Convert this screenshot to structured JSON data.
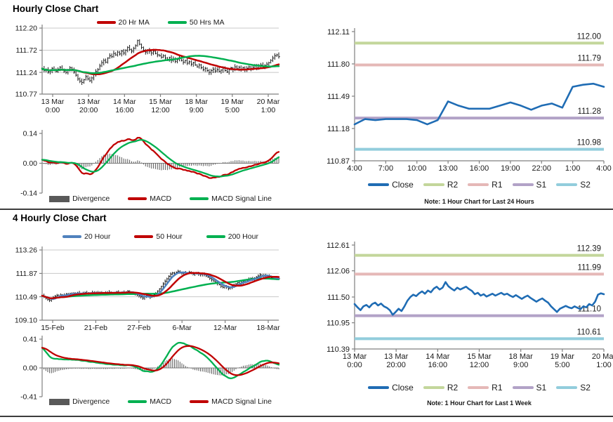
{
  "colors": {
    "ma_red": "#C00000",
    "ma_green": "#00B050",
    "ma_blue": "#4F81BD",
    "close": "#1F6CB4",
    "r2": "#C3D69B",
    "r1": "#E5B8B7",
    "s1": "#B2A2C7",
    "s2": "#92CDDC",
    "divergence": "#595959",
    "axis": "#808080",
    "grid": "#C8C8C8",
    "price_bar": "#000000"
  },
  "hourly": {
    "title": "Hourly Close Chart",
    "price_legend": [
      {
        "label": "20 Hr MA",
        "color": "#C00000",
        "type": "line"
      },
      {
        "label": "50 Hrs MA",
        "color": "#00B050",
        "type": "line"
      }
    ],
    "macd_legend": [
      {
        "label": "Divergence",
        "color": "#595959",
        "type": "bar"
      },
      {
        "label": "MACD",
        "color": "#C00000",
        "type": "line"
      },
      {
        "label": "MACD Signal Line",
        "color": "#00B050",
        "type": "line"
      }
    ]
  },
  "four_hourly": {
    "title": "4 Hourly Close Chart",
    "price_legend": [
      {
        "label": "20 Hour",
        "color": "#4F81BD",
        "type": "line"
      },
      {
        "label": "50 Hour",
        "color": "#C00000",
        "type": "line"
      },
      {
        "label": "200 Hour",
        "color": "#00B050",
        "type": "line"
      }
    ],
    "macd_legend": [
      {
        "label": "Divergence",
        "color": "#595959",
        "type": "bar"
      },
      {
        "label": "MACD",
        "color": "#00B050",
        "type": "line"
      },
      {
        "label": "MACD Signal Line",
        "color": "#C00000",
        "type": "line"
      }
    ]
  },
  "pivot_24h": {
    "note": "Note: 1 Hour Chart for Last 24 Hours",
    "legend": [
      {
        "label": "Close",
        "color": "#1F6CB4",
        "type": "line"
      },
      {
        "label": "R2",
        "color": "#C3D69B",
        "type": "line"
      },
      {
        "label": "R1",
        "color": "#E5B8B7",
        "type": "line"
      },
      {
        "label": "S1",
        "color": "#B2A2C7",
        "type": "line"
      },
      {
        "label": "S2",
        "color": "#92CDDC",
        "type": "line"
      }
    ]
  },
  "pivot_week": {
    "note": "Note: 1 Hour Chart for Last 1 Week",
    "legend": [
      {
        "label": "Close",
        "color": "#1F6CB4",
        "type": "line"
      },
      {
        "label": "R2",
        "color": "#C3D69B",
        "type": "line"
      },
      {
        "label": "R1",
        "color": "#E5B8B7",
        "type": "line"
      },
      {
        "label": "S1",
        "color": "#B2A2C7",
        "type": "line"
      },
      {
        "label": "S2",
        "color": "#92CDDC",
        "type": "line"
      }
    ]
  },
  "chart_data": [
    {
      "id": "hourly_price",
      "type": "ohlc",
      "title": "Hourly Close Chart",
      "ylim": [
        110.77,
        112.2
      ],
      "y_ticks": [
        112.2,
        111.72,
        111.24,
        110.77
      ],
      "x_ticks": [
        [
          "13 Mar",
          "0:00"
        ],
        [
          "13 Mar",
          "20:00"
        ],
        [
          "14 Mar",
          "16:00"
        ],
        [
          "15 Mar",
          "12:00"
        ],
        [
          "18 Mar",
          "9:00"
        ],
        [
          "19 Mar",
          "5:00"
        ],
        [
          "20 Mar",
          "1:00"
        ]
      ],
      "series": [
        {
          "name": "20 Hr MA",
          "derived": "sma",
          "window": 20,
          "color": "#C00000"
        },
        {
          "name": "50 Hrs MA",
          "derived": "sma",
          "window": 50,
          "color": "#00B050"
        }
      ],
      "close": [
        111.32,
        111.28,
        111.3,
        111.25,
        111.27,
        111.33,
        111.29,
        111.26,
        111.31,
        111.35,
        111.3,
        111.27,
        111.24,
        111.29,
        111.34,
        111.31,
        111.25,
        111.18,
        111.1,
        111.05,
        111.02,
        111.08,
        111.15,
        111.1,
        111.06,
        111.12,
        111.2,
        111.26,
        111.3,
        111.38,
        111.45,
        111.5,
        111.46,
        111.55,
        111.6,
        111.58,
        111.65,
        111.62,
        111.68,
        111.64,
        111.7,
        111.66,
        111.72,
        111.78,
        111.74,
        111.7,
        111.76,
        111.82,
        111.93,
        111.85,
        111.78,
        111.72,
        111.68,
        111.73,
        111.7,
        111.66,
        111.7,
        111.65,
        111.62,
        111.6,
        111.57,
        111.6,
        111.55,
        111.52,
        111.56,
        111.5,
        111.53,
        111.48,
        111.52,
        111.55,
        111.5,
        111.46,
        111.5,
        111.44,
        111.47,
        111.42,
        111.45,
        111.4,
        111.36,
        111.4,
        111.34,
        111.3,
        111.33,
        111.28,
        111.24,
        111.28,
        111.31,
        111.27,
        111.3,
        111.26,
        111.29,
        111.33,
        111.28,
        111.25,
        111.3,
        111.34,
        111.3,
        111.36,
        111.32,
        111.35,
        111.31,
        111.34,
        111.3,
        111.33,
        111.36,
        111.32,
        111.35,
        111.38,
        111.34,
        111.37,
        111.4,
        111.36,
        111.39,
        111.42,
        111.45,
        111.5,
        111.55,
        111.6,
        111.62,
        111.58
      ]
    },
    {
      "id": "hourly_macd",
      "type": "macd",
      "source": "hourly_price",
      "ylim": [
        -0.14,
        0.14
      ],
      "y_ticks": [
        0.14,
        0.0,
        -0.14
      ],
      "macd_peak": 0.12,
      "ema_seed_offset": 0.02,
      "macd_color": "#C00000",
      "signal_color": "#00B050",
      "hist_color": "#595959",
      "legend": [
        "Divergence",
        "MACD",
        "MACD Signal Line"
      ]
    },
    {
      "id": "four_hourly_price",
      "type": "ohlc",
      "title": "4 Hourly Close Chart",
      "ylim": [
        109.1,
        113.26
      ],
      "y_ticks": [
        113.26,
        111.87,
        110.49,
        109.1
      ],
      "x_ticks": [
        "15-Feb",
        "21-Feb",
        "27-Feb",
        "6-Mar",
        "12-Mar",
        "18-Mar"
      ],
      "series": [
        {
          "name": "20 Hour",
          "derived": "sma",
          "window": 5,
          "color": "#4F81BD"
        },
        {
          "name": "50 Hour",
          "derived": "sma",
          "window": 12,
          "color": "#C00000"
        },
        {
          "name": "200 Hour",
          "derived": "sma",
          "window": 50,
          "color": "#00B050"
        }
      ],
      "close": [
        110.55,
        110.48,
        110.4,
        110.32,
        110.28,
        110.35,
        110.45,
        110.52,
        110.58,
        110.52,
        110.6,
        110.55,
        110.6,
        110.65,
        110.62,
        110.68,
        110.64,
        110.7,
        110.66,
        110.72,
        110.68,
        110.65,
        110.7,
        110.74,
        110.7,
        110.66,
        110.7,
        110.75,
        110.72,
        110.68,
        110.73,
        110.7,
        110.74,
        110.71,
        110.68,
        110.72,
        110.76,
        110.72,
        110.7,
        110.74,
        110.78,
        110.74,
        110.7,
        110.75,
        110.72,
        110.78,
        110.82,
        110.76,
        110.72,
        110.68,
        110.64,
        110.6,
        110.55,
        110.48,
        110.42,
        110.5,
        110.56,
        110.5,
        110.46,
        110.52,
        110.6,
        110.7,
        110.82,
        110.95,
        111.1,
        111.25,
        111.4,
        111.55,
        111.7,
        111.82,
        111.9,
        111.85,
        111.95,
        112.0,
        111.92,
        111.88,
        111.92,
        111.85,
        111.9,
        111.95,
        111.88,
        111.82,
        111.86,
        111.9,
        111.84,
        111.8,
        111.84,
        111.78,
        111.72,
        111.65,
        111.58,
        111.5,
        111.42,
        111.35,
        111.28,
        111.2,
        111.12,
        111.05,
        111.12,
        111.06,
        110.98,
        111.05,
        111.12,
        111.18,
        111.25,
        111.32,
        111.28,
        111.35,
        111.42,
        111.38,
        111.45,
        111.52,
        111.58,
        111.52,
        111.6,
        111.66,
        111.72,
        111.78,
        111.74,
        111.7,
        111.76,
        111.72,
        111.66,
        111.6,
        111.55,
        111.58,
        111.54,
        111.56
      ]
    },
    {
      "id": "four_hourly_macd",
      "type": "macd",
      "source": "four_hourly_price",
      "ylim": [
        -0.41,
        0.41
      ],
      "y_ticks": [
        0.41,
        0.0,
        -0.41
      ],
      "macd_peak": 0.36,
      "ema_seed_offset": 0.3,
      "macd_color": "#00B050",
      "signal_color": "#C00000",
      "hist_color": "#595959",
      "legend": [
        "Divergence",
        "MACD",
        "MACD Signal Line"
      ]
    },
    {
      "id": "pivot_24h",
      "type": "line-levels",
      "ylim": [
        110.87,
        112.11
      ],
      "y_ticks": [
        112.11,
        111.8,
        111.49,
        111.18,
        110.87
      ],
      "x_ticks": [
        "4:00",
        "7:00",
        "10:00",
        "13:00",
        "16:00",
        "19:00",
        "22:00",
        "1:00",
        "4:00"
      ],
      "close_color": "#1F6CB4",
      "levels": [
        {
          "name": "R2",
          "value": 112.0,
          "label": "112.00",
          "color": "#C3D69B"
        },
        {
          "name": "R1",
          "value": 111.79,
          "label": "111.79",
          "color": "#E5B8B7"
        },
        {
          "name": "S1",
          "value": 111.28,
          "label": "111.28",
          "color": "#B2A2C7"
        },
        {
          "name": "S2",
          "value": 110.98,
          "label": "110.98",
          "color": "#92CDDC"
        }
      ],
      "close": [
        111.22,
        111.27,
        111.26,
        111.27,
        111.27,
        111.27,
        111.26,
        111.22,
        111.26,
        111.44,
        111.4,
        111.37,
        111.37,
        111.37,
        111.4,
        111.43,
        111.4,
        111.36,
        111.4,
        111.42,
        111.38,
        111.58,
        111.6,
        111.61,
        111.58
      ],
      "note": "Note: 1 Hour Chart for Last 24 Hours"
    },
    {
      "id": "pivot_week",
      "type": "line-levels",
      "ylim": [
        110.39,
        112.61
      ],
      "y_ticks": [
        112.61,
        112.06,
        111.5,
        110.95,
        110.39
      ],
      "x_ticks": [
        [
          "13 Mar",
          "0:00"
        ],
        [
          "13 Mar",
          "20:00"
        ],
        [
          "14 Mar",
          "16:00"
        ],
        [
          "15 Mar",
          "12:00"
        ],
        [
          "18 Mar",
          "9:00"
        ],
        [
          "19 Mar",
          "5:00"
        ],
        [
          "20 Mar",
          "1:00"
        ]
      ],
      "close_color": "#1F6CB4",
      "levels": [
        {
          "name": "R2",
          "value": 112.39,
          "label": "112.39",
          "color": "#C3D69B"
        },
        {
          "name": "R1",
          "value": 111.99,
          "label": "111.99",
          "color": "#E5B8B7"
        },
        {
          "name": "S1",
          "value": 111.1,
          "label": "111.10",
          "color": "#B2A2C7"
        },
        {
          "name": "S2",
          "value": 110.61,
          "label": "110.61",
          "color": "#92CDDC"
        }
      ],
      "close": [
        111.35,
        111.28,
        111.22,
        111.3,
        111.33,
        111.28,
        111.35,
        111.38,
        111.32,
        111.36,
        111.3,
        111.27,
        111.22,
        111.12,
        111.18,
        111.25,
        111.2,
        111.3,
        111.42,
        111.5,
        111.55,
        111.52,
        111.58,
        111.62,
        111.57,
        111.64,
        111.6,
        111.68,
        111.72,
        111.66,
        111.7,
        111.82,
        111.73,
        111.68,
        111.64,
        111.7,
        111.66,
        111.69,
        111.72,
        111.67,
        111.63,
        111.56,
        111.59,
        111.53,
        111.56,
        111.51,
        111.54,
        111.57,
        111.53,
        111.56,
        111.59,
        111.55,
        111.57,
        111.53,
        111.5,
        111.54,
        111.5,
        111.46,
        111.5,
        111.53,
        111.48,
        111.44,
        111.4,
        111.44,
        111.47,
        111.42,
        111.38,
        111.3,
        111.24,
        111.18,
        111.25,
        111.28,
        111.31,
        111.28,
        111.26,
        111.3,
        111.27,
        111.24,
        111.3,
        111.28,
        111.35,
        111.32,
        111.4,
        111.55,
        111.58,
        111.56
      ],
      "note": "Note: 1 Hour Chart for Last 1 Week"
    }
  ]
}
